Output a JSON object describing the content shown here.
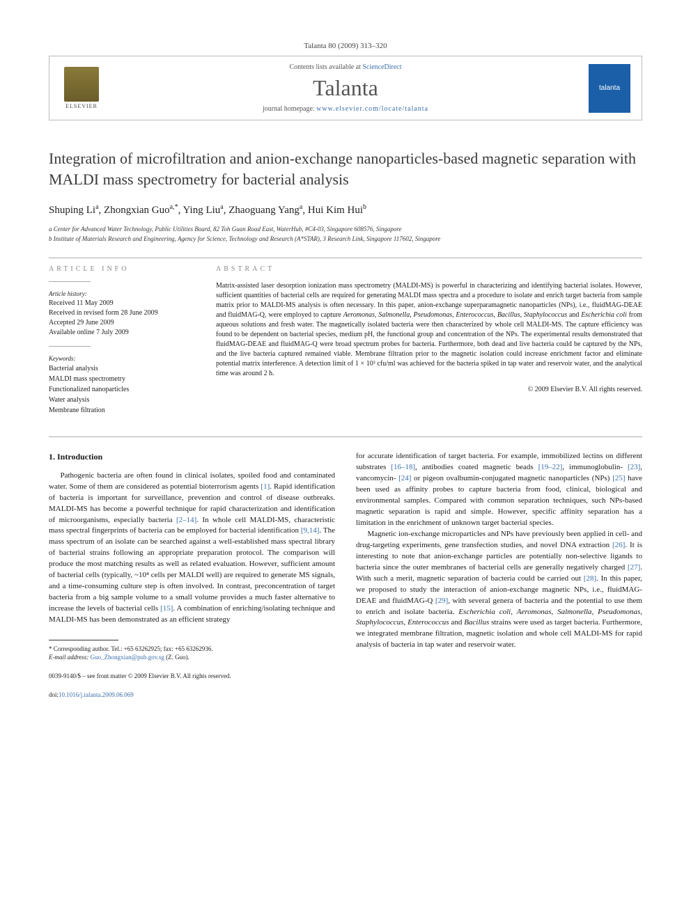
{
  "header": {
    "citation": "Talanta 80 (2009) 313–320",
    "contents_prefix": "Contents lists available at ",
    "sciencedirect": "ScienceDirect",
    "journal_name": "Talanta",
    "homepage_prefix": "journal homepage: ",
    "homepage_url": "www.elsevier.com/locate/talanta",
    "elsevier_label": "ELSEVIER",
    "talanta_logo_text": "talanta"
  },
  "title": "Integration of microfiltration and anion-exchange nanoparticles-based magnetic separation with MALDI mass spectrometry for bacterial analysis",
  "authors_html": "Shuping Li<sup>a</sup>, Zhongxian Guo<sup>a,*</sup>, Ying Liu<sup>a</sup>, Zhaoguang Yang<sup>a</sup>, Hui Kim Hui<sup>b</sup>",
  "affiliations": [
    "a Center for Advanced Water Technology, Public Utilities Board, 82 Toh Guan Road East, WaterHub, #C4-03, Singapore 608576, Singapore",
    "b Institute of Materials Research and Engineering, Agency for Science, Technology and Research (A*STAR), 3 Research Link, Singapore 117602, Singapore"
  ],
  "article_info": {
    "heading": "ARTICLE INFO",
    "history_label": "Article history:",
    "history": [
      "Received 11 May 2009",
      "Received in revised form 28 June 2009",
      "Accepted 29 June 2009",
      "Available online 7 July 2009"
    ],
    "keywords_label": "Keywords:",
    "keywords": [
      "Bacterial analysis",
      "MALDI mass spectrometry",
      "Functionalized nanoparticles",
      "Water analysis",
      "Membrane filtration"
    ]
  },
  "abstract": {
    "heading": "ABSTRACT",
    "text": "Matrix-assisted laser desorption ionization mass spectrometry (MALDI-MS) is powerful in characterizing and identifying bacterial isolates. However, sufficient quantities of bacterial cells are required for generating MALDI mass spectra and a procedure to isolate and enrich target bacteria from sample matrix prior to MALDI-MS analysis is often necessary. In this paper, anion-exchange superparamagnetic nanoparticles (NPs), i.e., fluidMAG-DEAE and fluidMAG-Q, were employed to capture Aeromonas, Salmonella, Pseudomonas, Enterococcus, Bacillus, Staphylococcus and Escherichia coli from aqueous solutions and fresh water. The magnetically isolated bacteria were then characterized by whole cell MALDI-MS. The capture efficiency was found to be dependent on bacterial species, medium pH, the functional group and concentration of the NPs. The experimental results demonstrated that fluidMAG-DEAE and fluidMAG-Q were broad spectrum probes for bacteria. Furthermore, both dead and live bacteria could be captured by the NPs, and the live bacteria captured remained viable. Membrane filtration prior to the magnetic isolation could increase enrichment factor and eliminate potential matrix interference. A detection limit of 1 × 10³ cfu/ml was achieved for the bacteria spiked in tap water and reservoir water, and the analytical time was around 2 h.",
    "copyright": "© 2009 Elsevier B.V. All rights reserved."
  },
  "body": {
    "intro_heading": "1. Introduction",
    "left_para": "Pathogenic bacteria are often found in clinical isolates, spoiled food and contaminated water. Some of them are considered as potential bioterrorism agents [1]. Rapid identification of bacteria is important for surveillance, prevention and control of disease outbreaks. MALDI-MS has become a powerful technique for rapid characterization and identification of microorganisms, especially bacteria [2–14]. In whole cell MALDI-MS, characteristic mass spectral fingerprints of bacteria can be employed for bacterial identification [9,14]. The mass spectrum of an isolate can be searched against a well-established mass spectral library of bacterial strains following an appropriate preparation protocol. The comparison will produce the most matching results as well as related evaluation. However, sufficient amount of bacterial cells (typically, ~10⁴ cells per MALDI well) are required to generate MS signals, and a time-consuming culture step is often involved. In contrast, preconcentration of target bacteria from a big sample volume to a small volume provides a much faster alternative to increase the levels of bacterial cells [15]. A combination of enriching/isolating technique and MALDI-MS has been demonstrated as an efficient strategy",
    "right_para1": "for accurate identification of target bacteria. For example, immobilized lectins on different substrates [16–18], antibodies coated magnetic beads [19–22], immunoglobulin- [23], vancomycin- [24] or pigeon ovalbumin-conjugated magnetic nanoparticles (NPs) [25] have been used as affinity probes to capture bacteria from food, clinical, biological and environmental samples. Compared with common separation techniques, such NPs-based magnetic separation is rapid and simple. However, specific affinity separation has a limitation in the enrichment of unknown target bacterial species.",
    "right_para2": "Magnetic ion-exchange microparticles and NPs have previously been applied in cell- and drug-targeting experiments, gene transfection studies, and novel DNA extraction [26]. It is interesting to note that anion-exchange particles are potentially non-selective ligands to bacteria since the outer membranes of bacterial cells are generally negatively charged [27]. With such a merit, magnetic separation of bacteria could be carried out [28]. In this paper, we proposed to study the interaction of anion-exchange magnetic NPs, i.e., fluidMAG-DEAE and fluidMAG-Q [29], with several genera of bacteria and the potential to use them to enrich and isolate bacteria. Escherichia coli, Aeromonas, Salmonella, Pseudomonas, Staphylococcus, Enterococcus and Bacillus strains were used as target bacteria. Furthermore, we integrated membrane filtration, magnetic isolation and whole cell MALDI-MS for rapid analysis of bacteria in tap water and reservoir water."
  },
  "footnote": {
    "corresponding": "* Corresponding author. Tel.: +65 63262925; fax: +65 63262936.",
    "email_label": "E-mail address: ",
    "email": "Guo_Zhongxian@pub.gov.sg",
    "email_suffix": " (Z. Guo)."
  },
  "footer": {
    "line1": "0039-9140/$ – see front matter © 2009 Elsevier B.V. All rights reserved.",
    "doi_label": "doi:",
    "doi": "10.1016/j.talanta.2009.06.069"
  }
}
